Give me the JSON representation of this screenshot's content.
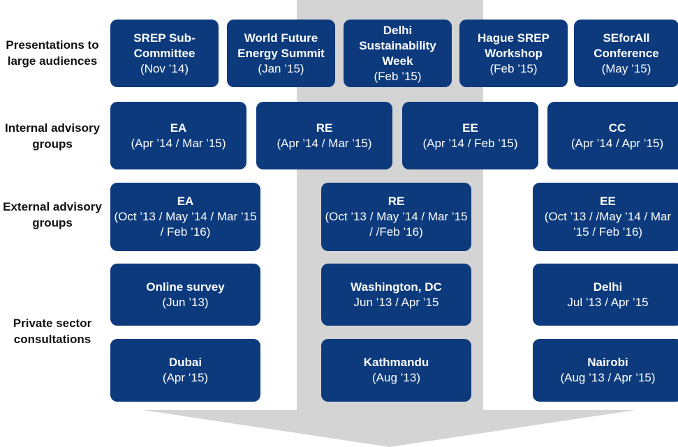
{
  "rows": [
    {
      "label": "Presentations to large audiences",
      "boxes": [
        {
          "title": "SREP Sub-Committee",
          "date": "(Nov ’14)"
        },
        {
          "title": "World Future Energy Summit",
          "date": "(Jan ’15)"
        },
        {
          "title": "Delhi Sustainability Week",
          "date": "(Feb ’15)"
        },
        {
          "title": "Hague SREP Workshop",
          "date": "(Feb ’15)"
        },
        {
          "title": "SEforAll Conference",
          "date": "(May ’15)"
        }
      ]
    },
    {
      "label": "Internal advisory groups",
      "boxes": [
        {
          "title": "EA",
          "date": "(Apr ’14 / Mar ’15)"
        },
        {
          "title": "RE",
          "date": "(Apr ’14 / Mar ’15)"
        },
        {
          "title": "EE",
          "date": "(Apr ’14 / Feb ’15)"
        },
        {
          "title": "CC",
          "date": "(Apr ’14 / Apr ’15)"
        }
      ]
    },
    {
      "label": "External advisory groups",
      "boxes": [
        {
          "title": "EA",
          "date": "(Oct ’13 / May ’14 / Mar ’15 / Feb ’16)"
        },
        {
          "title": "RE",
          "date": "(Oct ’13 / May ’14 / Mar ’15 / /Feb ’16)"
        },
        {
          "title": "EE",
          "date": "(Oct ’13 / /May ’14 / Mar ’15 / Feb ’16)"
        }
      ]
    },
    {
      "label": "Private sector consultations",
      "boxes": [
        {
          "title": "Online survey",
          "date": "(Jun ’13)"
        },
        {
          "title": "Washington, DC",
          "date": "Jun ’13 / Apr ’15"
        },
        {
          "title": "Delhi",
          "date": "Jul ’13 / Apr ’15"
        },
        {
          "title": "Dubai",
          "date": "(Apr ’15)"
        },
        {
          "title": "Kathmandu",
          "date": "(Aug ’13)"
        },
        {
          "title": "Nairobi",
          "date": "(Aug ’13 / Apr ’15)"
        }
      ]
    }
  ]
}
